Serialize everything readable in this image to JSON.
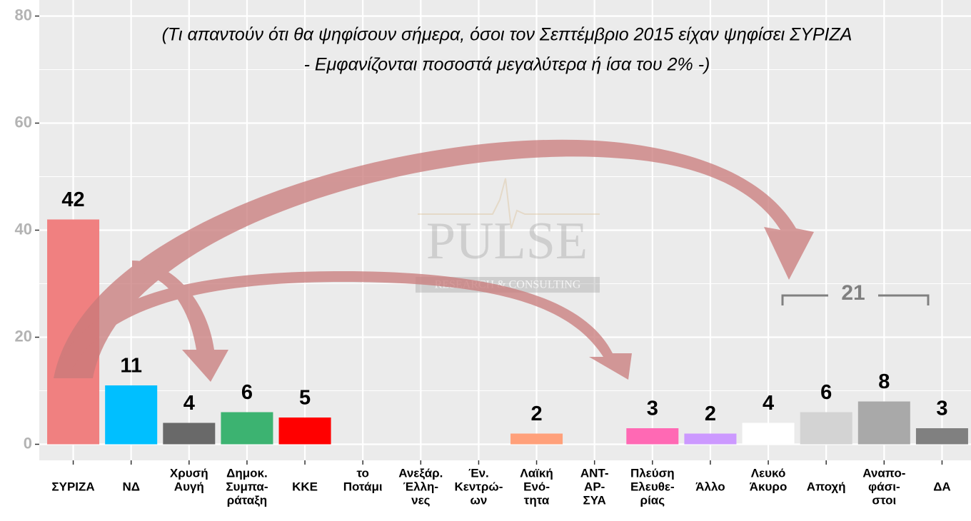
{
  "chart_data": {
    "type": "bar",
    "title": [
      "(Τι απαντούν ότι θα ψηφίσουν σήμερα, όσοι τον Σεπτέμβριο 2015 είχαν ψηφίσει ΣΥΡΙΖΑ",
      "- Εμφανίζονται ποσοστά μεγαλύτερα ή ίσα του 2% -)"
    ],
    "watermark": [
      "PULSE",
      "RESEARCH & CONSULTING"
    ],
    "categories": [
      [
        "ΣΥΡΙΖΑ"
      ],
      [
        "ΝΔ"
      ],
      [
        "Χρυσή",
        "Αυγή"
      ],
      [
        "Δημοκ.",
        "Συμπα-",
        "ράταξη"
      ],
      [
        "ΚΚΕ"
      ],
      [
        "το",
        "Ποτάμι"
      ],
      [
        "Ανεξάρ.",
        "Έλλη-",
        "νες"
      ],
      [
        "Έν.",
        "Κεντρώ-",
        "ων"
      ],
      [
        "Λαϊκή",
        "Ενό-",
        "τητα"
      ],
      [
        "ΑΝΤ-",
        "ΑΡ-",
        "ΣΥΑ"
      ],
      [
        "Πλεύση",
        "Ελευθε-",
        "ρίας"
      ],
      [
        "Άλλο"
      ],
      [
        "Λευκό",
        "Άκυρο"
      ],
      [
        "Αποχή"
      ],
      [
        "Αναπο-",
        "φάσι-",
        "στοι"
      ],
      [
        "ΔΑ"
      ]
    ],
    "values": [
      42,
      11,
      4,
      6,
      5,
      null,
      null,
      null,
      2,
      null,
      3,
      2,
      4,
      6,
      8,
      3
    ],
    "colors": [
      "#f08080",
      "#00bfff",
      "#696969",
      "#3cb371",
      "#ff0000",
      null,
      null,
      null,
      "#ffa07a",
      null,
      "#ff69b4",
      "#cc99ff",
      "#ffffff",
      "#d3d3d3",
      "#a9a9a9",
      "#808080"
    ],
    "annotation": {
      "text": "21",
      "value": 21
    },
    "ylim": [
      -3,
      83
    ],
    "yticks": [
      0,
      20,
      40,
      60,
      80
    ],
    "minor_yticks": [
      10,
      30,
      50,
      70
    ],
    "grid": true
  }
}
